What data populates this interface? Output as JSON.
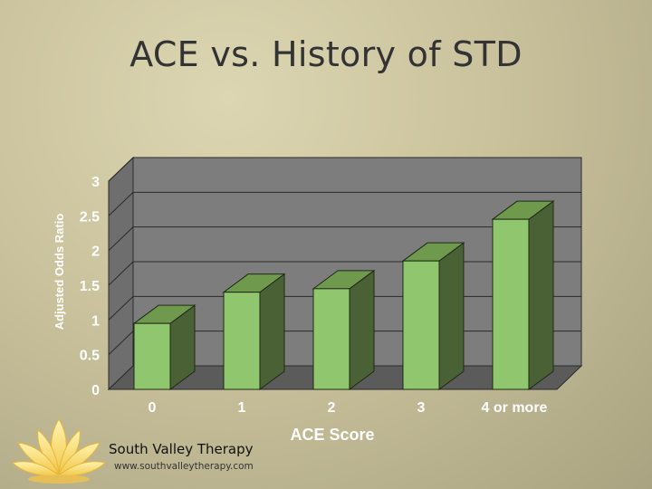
{
  "slide": {
    "title": "ACE vs. History of STD"
  },
  "footer": {
    "company": "South Valley Therapy",
    "website": "www.southvalleytherapy.com"
  },
  "colors": {
    "bar_front": "#90c66e",
    "bar_side": "#4a6136",
    "bar_top": "#6f9a4e",
    "plot_wall": "#7d7d7d",
    "floor": "#5b5b5b",
    "label": "#ffffff"
  },
  "chart_data": {
    "type": "bar",
    "style": "3d-column",
    "categories": [
      "0",
      "1",
      "2",
      "3",
      "4 or more"
    ],
    "series": [
      {
        "values": [
          0.95,
          1.4,
          1.45,
          1.85,
          2.45
        ]
      }
    ],
    "xlabel": "ACE Score",
    "ylabel": "Adjusted Odds Ratio",
    "ylim": [
      0,
      3
    ],
    "yticks": [
      "0",
      "0.5",
      "1",
      "1.5",
      "2",
      "2.5",
      "3"
    ],
    "grid": true,
    "legend": false
  }
}
